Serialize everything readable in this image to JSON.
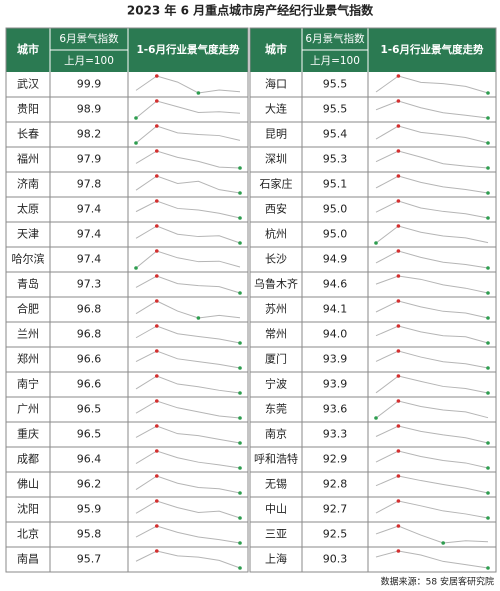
{
  "title": "2023 年 6 月重点城市房产经纪行业景气指数",
  "header": {
    "city": "城市",
    "index_top": "6月景气指数",
    "index_bottom": "上月=100",
    "trend": "1-6月行业景气度走势"
  },
  "left_rows": [
    {
      "city": "武汉",
      "index": "99.9",
      "trend": [
        100.2,
        103.5,
        102.1,
        99.6,
        100.3,
        99.9
      ]
    },
    {
      "city": "贵阳",
      "index": "98.9",
      "trend": [
        97.0,
        103.8,
        101.5,
        99.2,
        99.5,
        98.9
      ]
    },
    {
      "city": "长春",
      "index": "98.2",
      "trend": [
        97.2,
        103.6,
        101.0,
        100.4,
        100.0,
        98.2
      ]
    },
    {
      "city": "福州",
      "index": "97.9",
      "trend": [
        99.5,
        103.8,
        101.6,
        100.2,
        98.2,
        97.9
      ]
    },
    {
      "city": "济南",
      "index": "97.8",
      "trend": [
        98.8,
        103.9,
        101.2,
        102.0,
        99.0,
        97.8
      ]
    },
    {
      "city": "太原",
      "index": "97.4",
      "trend": [
        99.8,
        103.8,
        101.0,
        100.4,
        99.2,
        97.4
      ]
    },
    {
      "city": "天津",
      "index": "97.4",
      "trend": [
        99.2,
        104.0,
        100.8,
        99.9,
        100.2,
        97.4
      ]
    },
    {
      "city": "哈尔滨",
      "index": "97.4",
      "trend": [
        97.0,
        104.0,
        101.2,
        99.6,
        99.8,
        97.4
      ]
    },
    {
      "city": "青岛",
      "index": "97.3",
      "trend": [
        99.5,
        104.0,
        101.0,
        100.2,
        99.8,
        97.3
      ]
    },
    {
      "city": "合肥",
      "index": "96.8",
      "trend": [
        98.5,
        103.8,
        99.6,
        96.7,
        97.8,
        96.8
      ]
    },
    {
      "city": "兰州",
      "index": "96.8",
      "trend": [
        98.9,
        103.6,
        100.5,
        99.4,
        98.4,
        96.8
      ]
    },
    {
      "city": "郑州",
      "index": "96.6",
      "trend": [
        99.4,
        104.0,
        100.6,
        99.4,
        98.2,
        96.6
      ]
    },
    {
      "city": "南宁",
      "index": "96.6",
      "trend": [
        98.4,
        104.2,
        100.6,
        99.4,
        97.8,
        96.6
      ]
    },
    {
      "city": "广州",
      "index": "96.5",
      "trend": [
        98.6,
        104.0,
        101.0,
        99.2,
        97.4,
        96.5
      ]
    },
    {
      "city": "重庆",
      "index": "96.5",
      "trend": [
        98.8,
        103.6,
        100.4,
        99.6,
        98.0,
        96.5
      ]
    },
    {
      "city": "成都",
      "index": "96.4",
      "trend": [
        98.4,
        104.0,
        101.0,
        99.0,
        97.8,
        96.4
      ]
    },
    {
      "city": "佛山",
      "index": "96.2",
      "trend": [
        97.8,
        104.2,
        100.8,
        98.8,
        98.2,
        96.2
      ]
    },
    {
      "city": "沈阳",
      "index": "95.9",
      "trend": [
        98.0,
        103.6,
        100.6,
        98.4,
        99.0,
        95.9
      ]
    },
    {
      "city": "北京",
      "index": "95.8",
      "trend": [
        98.6,
        103.8,
        100.8,
        98.6,
        97.4,
        95.8
      ]
    },
    {
      "city": "南昌",
      "index": "95.7",
      "trend": [
        99.0,
        104.0,
        101.6,
        101.0,
        99.4,
        95.7
      ]
    }
  ],
  "right_rows": [
    {
      "city": "海口",
      "index": "95.5",
      "trend": [
        96.0,
        104.0,
        100.8,
        100.2,
        98.8,
        95.5
      ]
    },
    {
      "city": "大连",
      "index": "95.5",
      "trend": [
        99.4,
        103.6,
        100.4,
        98.0,
        96.8,
        95.5
      ]
    },
    {
      "city": "昆明",
      "index": "95.4",
      "trend": [
        97.4,
        104.0,
        100.8,
        99.6,
        98.2,
        95.4
      ]
    },
    {
      "city": "深圳",
      "index": "95.3",
      "trend": [
        98.4,
        103.6,
        100.6,
        97.4,
        96.2,
        95.3
      ]
    },
    {
      "city": "石家庄",
      "index": "95.1",
      "trend": [
        97.8,
        104.2,
        100.8,
        98.4,
        97.0,
        95.1
      ]
    },
    {
      "city": "西安",
      "index": "95.0",
      "trend": [
        98.0,
        103.8,
        100.2,
        98.4,
        97.2,
        95.0
      ]
    },
    {
      "city": "杭州",
      "index": "95.0",
      "trend": [
        94.8,
        104.0,
        100.6,
        98.6,
        97.6,
        95.0
      ]
    },
    {
      "city": "长沙",
      "index": "94.9",
      "trend": [
        97.6,
        104.0,
        100.6,
        98.0,
        96.8,
        94.9
      ]
    },
    {
      "city": "乌鲁木齐",
      "index": "94.6",
      "trend": [
        99.4,
        103.8,
        102.0,
        99.0,
        97.2,
        94.6
      ]
    },
    {
      "city": "苏州",
      "index": "94.1",
      "trend": [
        97.6,
        104.0,
        100.6,
        98.0,
        97.0,
        94.1
      ]
    },
    {
      "city": "常州",
      "index": "94.0",
      "trend": [
        98.2,
        103.8,
        100.4,
        98.2,
        97.6,
        94.0
      ]
    },
    {
      "city": "厦门",
      "index": "93.9",
      "trend": [
        97.8,
        104.0,
        100.4,
        97.6,
        96.4,
        93.9
      ]
    },
    {
      "city": "宁波",
      "index": "93.9",
      "trend": [
        94.0,
        104.0,
        100.8,
        97.8,
        96.6,
        93.9
      ]
    },
    {
      "city": "东莞",
      "index": "93.6",
      "trend": [
        93.4,
        104.0,
        100.6,
        98.4,
        97.2,
        93.6
      ]
    },
    {
      "city": "南京",
      "index": "93.3",
      "trend": [
        97.4,
        104.0,
        100.6,
        98.4,
        96.6,
        93.3
      ]
    },
    {
      "city": "呼和浩特",
      "index": "92.9",
      "trend": [
        96.8,
        104.0,
        100.4,
        97.8,
        96.2,
        92.9
      ]
    },
    {
      "city": "无锡",
      "index": "92.8",
      "trend": [
        97.6,
        104.0,
        101.0,
        98.4,
        96.0,
        92.8
      ]
    },
    {
      "city": "中山",
      "index": "92.7",
      "trend": [
        96.0,
        104.0,
        100.8,
        97.4,
        95.4,
        92.7
      ]
    },
    {
      "city": "三亚",
      "index": "92.5",
      "trend": [
        98.0,
        103.6,
        97.2,
        91.6,
        93.2,
        92.5
      ]
    },
    {
      "city": "上海",
      "index": "90.3",
      "trend": [
        99.2,
        104.0,
        100.8,
        95.6,
        93.0,
        90.3
      ]
    }
  ],
  "source": "数据来源：58 安居客研究院",
  "max_color": "#d32f2f",
  "min_color": "#2e9d4f",
  "line_color": "#b5b5b5"
}
